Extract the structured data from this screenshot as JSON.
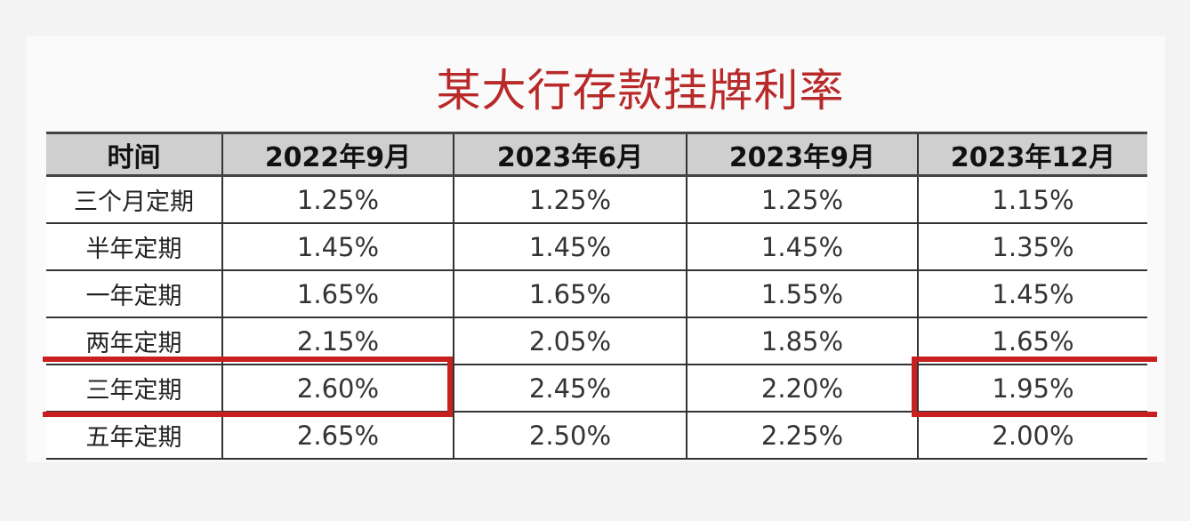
{
  "title": "某大行存款挂牌利率",
  "colors": {
    "title": "#b82a2a",
    "highlight": "#c8201e",
    "header_bg": "#cfcfcf"
  },
  "table": {
    "headers": [
      "时间",
      "2022年9月",
      "2023年6月",
      "2023年9月",
      "2023年12月"
    ],
    "rows": [
      {
        "label": "三个月定期",
        "values": [
          "1.25%",
          "1.25%",
          "1.25%",
          "1.15%"
        ]
      },
      {
        "label": "半年定期",
        "values": [
          "1.45%",
          "1.45%",
          "1.45%",
          "1.35%"
        ]
      },
      {
        "label": "一年定期",
        "values": [
          "1.65%",
          "1.65%",
          "1.55%",
          "1.45%"
        ]
      },
      {
        "label": "两年定期",
        "values": [
          "2.15%",
          "2.05%",
          "1.85%",
          "1.65%"
        ]
      },
      {
        "label": "三年定期",
        "values": [
          "2.60%",
          "2.45%",
          "2.20%",
          "1.95%"
        ],
        "highlighted": true
      },
      {
        "label": "五年定期",
        "values": [
          "2.65%",
          "2.50%",
          "2.25%",
          "2.00%"
        ]
      }
    ]
  }
}
